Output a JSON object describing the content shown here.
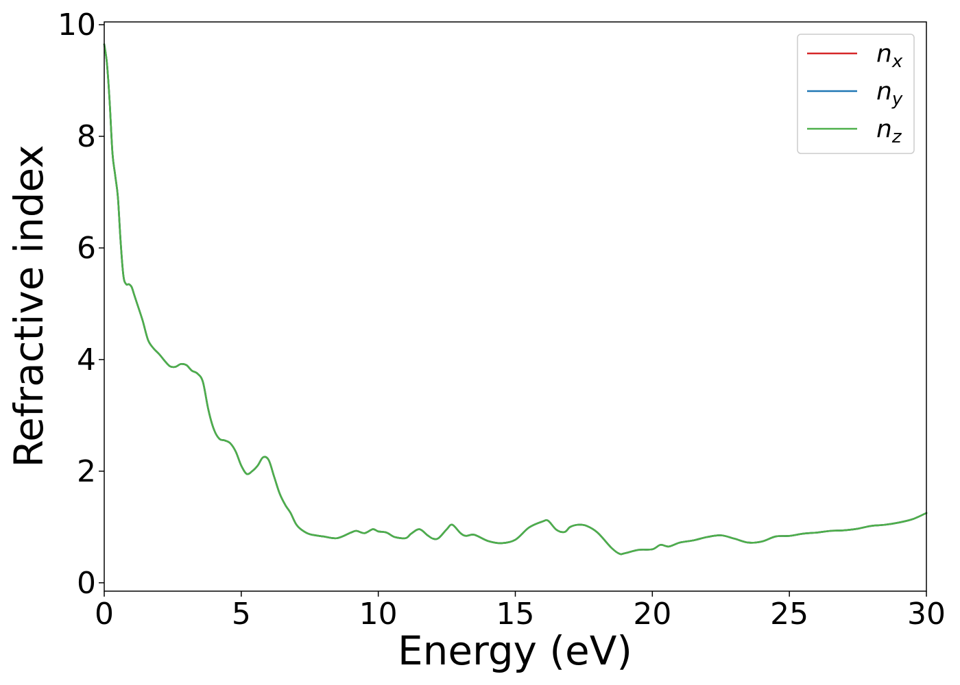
{
  "chart_data": {
    "type": "line",
    "title": "",
    "xlabel": "Energy (eV)",
    "ylabel": "Refractive index",
    "xlim": [
      0,
      30
    ],
    "ylim": [
      -0.15,
      10.05
    ],
    "xticks": [
      0,
      5,
      10,
      15,
      20,
      25,
      30
    ],
    "yticks": [
      0,
      2,
      4,
      6,
      8,
      10
    ],
    "grid": false,
    "legend_position": "top-right",
    "legend": [
      {
        "base": "n",
        "sub": "x",
        "color": "#d62728"
      },
      {
        "base": "n",
        "sub": "y",
        "color": "#1f77b4"
      },
      {
        "base": "n",
        "sub": "z",
        "color": "#4daf4a"
      }
    ],
    "x": [
      0,
      0.1,
      0.2,
      0.3,
      0.4,
      0.5,
      0.6,
      0.7,
      0.8,
      0.9,
      1.0,
      1.1,
      1.2,
      1.4,
      1.6,
      1.8,
      2.0,
      2.2,
      2.4,
      2.6,
      2.8,
      3.0,
      3.2,
      3.4,
      3.6,
      3.8,
      4.0,
      4.2,
      4.4,
      4.6,
      4.8,
      5.0,
      5.2,
      5.4,
      5.6,
      5.8,
      6.0,
      6.2,
      6.4,
      6.6,
      6.8,
      7.0,
      7.2,
      7.5,
      8.0,
      8.5,
      9.0,
      9.2,
      9.5,
      9.8,
      10.0,
      10.3,
      10.6,
      11.0,
      11.2,
      11.5,
      11.8,
      12.0,
      12.2,
      12.5,
      12.7,
      13.0,
      13.2,
      13.5,
      14.0,
      14.5,
      15.0,
      15.5,
      16.0,
      16.2,
      16.5,
      16.8,
      17.0,
      17.3,
      17.6,
      18.0,
      18.5,
      18.8,
      19.0,
      19.5,
      20.0,
      20.3,
      20.6,
      21.0,
      21.5,
      22.0,
      22.5,
      23.0,
      23.5,
      24.0,
      24.5,
      25.0,
      25.5,
      26.0,
      26.5,
      27.0,
      27.5,
      28.0,
      28.5,
      29.0,
      29.5,
      30.0
    ],
    "series": [
      {
        "name": "n_x",
        "color": "#d62728",
        "values": [
          9.65,
          9.3,
          8.6,
          7.7,
          7.3,
          6.9,
          6.1,
          5.5,
          5.35,
          5.35,
          5.3,
          5.15,
          5.0,
          4.7,
          4.35,
          4.2,
          4.1,
          3.98,
          3.88,
          3.87,
          3.92,
          3.9,
          3.8,
          3.75,
          3.6,
          3.1,
          2.75,
          2.58,
          2.55,
          2.5,
          2.35,
          2.1,
          1.95,
          2.0,
          2.1,
          2.25,
          2.2,
          1.9,
          1.6,
          1.4,
          1.25,
          1.05,
          0.95,
          0.87,
          0.83,
          0.8,
          0.9,
          0.93,
          0.89,
          0.96,
          0.92,
          0.9,
          0.82,
          0.8,
          0.88,
          0.96,
          0.85,
          0.79,
          0.8,
          0.96,
          1.04,
          0.89,
          0.84,
          0.86,
          0.75,
          0.71,
          0.77,
          0.99,
          1.1,
          1.11,
          0.95,
          0.91,
          1.0,
          1.04,
          1.02,
          0.9,
          0.63,
          0.52,
          0.53,
          0.59,
          0.6,
          0.68,
          0.65,
          0.72,
          0.76,
          0.82,
          0.85,
          0.79,
          0.72,
          0.74,
          0.83,
          0.84,
          0.88,
          0.9,
          0.93,
          0.94,
          0.97,
          1.02,
          1.04,
          1.08,
          1.14,
          1.25
        ]
      },
      {
        "name": "n_y",
        "color": "#1f77b4",
        "values": [
          9.65,
          9.3,
          8.6,
          7.7,
          7.3,
          6.9,
          6.1,
          5.5,
          5.35,
          5.35,
          5.3,
          5.15,
          5.0,
          4.7,
          4.35,
          4.2,
          4.1,
          3.98,
          3.88,
          3.87,
          3.92,
          3.9,
          3.8,
          3.75,
          3.6,
          3.1,
          2.75,
          2.58,
          2.55,
          2.5,
          2.35,
          2.1,
          1.95,
          2.0,
          2.1,
          2.25,
          2.2,
          1.9,
          1.6,
          1.4,
          1.25,
          1.05,
          0.95,
          0.87,
          0.83,
          0.8,
          0.9,
          0.93,
          0.89,
          0.96,
          0.92,
          0.9,
          0.82,
          0.8,
          0.88,
          0.96,
          0.85,
          0.79,
          0.8,
          0.96,
          1.04,
          0.89,
          0.84,
          0.86,
          0.75,
          0.71,
          0.77,
          0.99,
          1.1,
          1.11,
          0.95,
          0.91,
          1.0,
          1.04,
          1.02,
          0.9,
          0.63,
          0.52,
          0.53,
          0.59,
          0.6,
          0.68,
          0.65,
          0.72,
          0.76,
          0.82,
          0.85,
          0.79,
          0.72,
          0.74,
          0.83,
          0.84,
          0.88,
          0.9,
          0.93,
          0.94,
          0.97,
          1.02,
          1.04,
          1.08,
          1.14,
          1.25
        ]
      },
      {
        "name": "n_z",
        "color": "#4daf4a",
        "values": [
          9.65,
          9.3,
          8.6,
          7.7,
          7.3,
          6.9,
          6.1,
          5.5,
          5.35,
          5.35,
          5.3,
          5.15,
          5.0,
          4.7,
          4.35,
          4.2,
          4.1,
          3.98,
          3.88,
          3.87,
          3.92,
          3.9,
          3.8,
          3.75,
          3.6,
          3.1,
          2.75,
          2.58,
          2.55,
          2.5,
          2.35,
          2.1,
          1.95,
          2.0,
          2.1,
          2.25,
          2.2,
          1.9,
          1.6,
          1.4,
          1.25,
          1.05,
          0.95,
          0.87,
          0.83,
          0.8,
          0.9,
          0.93,
          0.89,
          0.96,
          0.92,
          0.9,
          0.82,
          0.8,
          0.88,
          0.96,
          0.85,
          0.79,
          0.8,
          0.96,
          1.04,
          0.89,
          0.84,
          0.86,
          0.75,
          0.71,
          0.77,
          0.99,
          1.1,
          1.11,
          0.95,
          0.91,
          1.0,
          1.04,
          1.02,
          0.9,
          0.63,
          0.52,
          0.53,
          0.59,
          0.6,
          0.68,
          0.65,
          0.72,
          0.76,
          0.82,
          0.85,
          0.79,
          0.72,
          0.74,
          0.83,
          0.84,
          0.88,
          0.9,
          0.93,
          0.94,
          0.97,
          1.02,
          1.04,
          1.08,
          1.14,
          1.25
        ]
      }
    ]
  }
}
